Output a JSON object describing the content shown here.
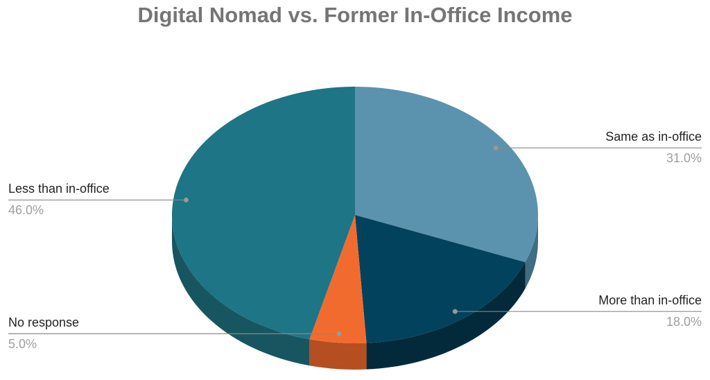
{
  "chart_data": {
    "type": "pie",
    "title": "Digital Nomad vs. Former In-Office Income",
    "categories": [
      "Same as in-office",
      "More than in-office",
      "No response",
      "Less than in-office"
    ],
    "values": [
      31,
      18,
      5,
      46
    ],
    "value_labels": [
      "31.0%",
      "18.0%",
      "5.0%",
      "46.0%"
    ],
    "colors": [
      "#5b93ae",
      "#03425c",
      "#f26b2e",
      "#1d7585"
    ],
    "side_colors": [
      "#3f6d82",
      "#022a3b",
      "#b54e20",
      "#175660"
    ]
  }
}
